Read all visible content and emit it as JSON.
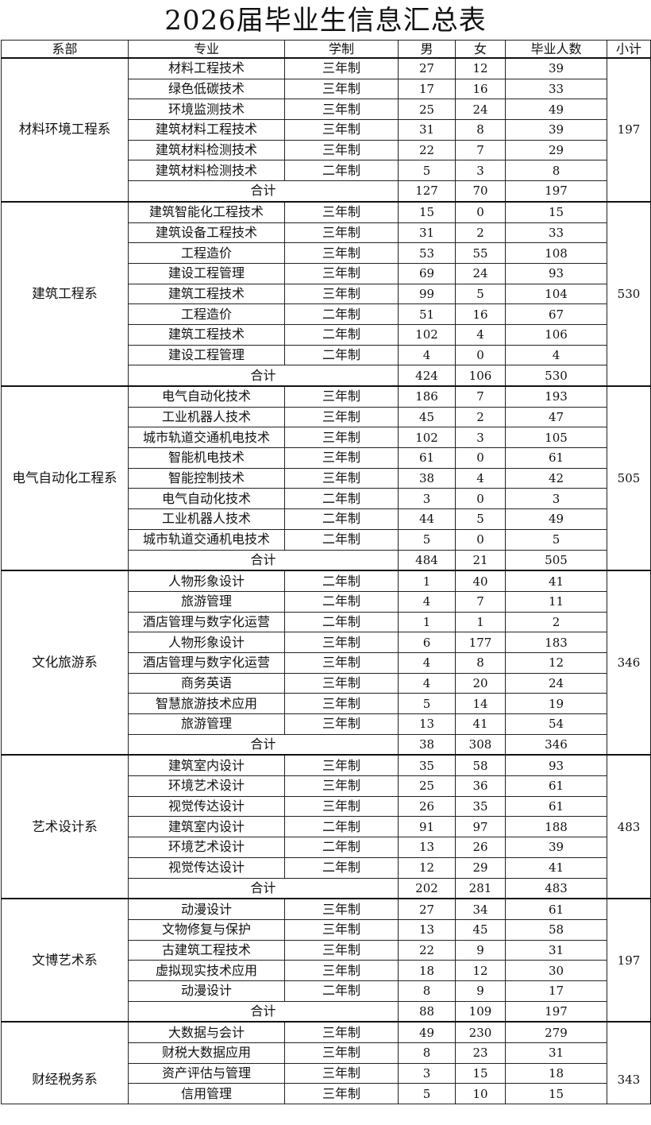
{
  "title": "2026届毕业生信息汇总表",
  "headers": [
    "系部",
    "专业",
    "学制",
    "男",
    "女",
    "毕业人数",
    "小计"
  ],
  "total_label": "合计",
  "departments": [
    {
      "name": "材料环境工程系",
      "subtotal": "197",
      "rows": [
        [
          "材料工程技术",
          "三年制",
          "27",
          "12",
          "39"
        ],
        [
          "绿色低碳技术",
          "三年制",
          "17",
          "16",
          "33"
        ],
        [
          "环境监测技术",
          "三年制",
          "25",
          "24",
          "49"
        ],
        [
          "建筑材料工程技术",
          "三年制",
          "31",
          "8",
          "39"
        ],
        [
          "建筑材料检测技术",
          "三年制",
          "22",
          "7",
          "29"
        ],
        [
          "建筑材料检测技术",
          "二年制",
          "5",
          "3",
          "8"
        ]
      ],
      "total": [
        "127",
        "70",
        "197"
      ]
    },
    {
      "name": "建筑工程系",
      "subtotal": "530",
      "rows": [
        [
          "建筑智能化工程技术",
          "三年制",
          "15",
          "0",
          "15"
        ],
        [
          "建筑设备工程技术",
          "三年制",
          "31",
          "2",
          "33"
        ],
        [
          "工程造价",
          "三年制",
          "53",
          "55",
          "108"
        ],
        [
          "建设工程管理",
          "三年制",
          "69",
          "24",
          "93"
        ],
        [
          "建筑工程技术",
          "三年制",
          "99",
          "5",
          "104"
        ],
        [
          "工程造价",
          "二年制",
          "51",
          "16",
          "67"
        ],
        [
          "建筑工程技术",
          "二年制",
          "102",
          "4",
          "106"
        ],
        [
          "建设工程管理",
          "二年制",
          "4",
          "0",
          "4"
        ]
      ],
      "total": [
        "424",
        "106",
        "530"
      ]
    },
    {
      "name": "电气自动化工程系",
      "subtotal": "505",
      "rows": [
        [
          "电气自动化技术",
          "三年制",
          "186",
          "7",
          "193"
        ],
        [
          "工业机器人技术",
          "三年制",
          "45",
          "2",
          "47"
        ],
        [
          "城市轨道交通机电技术",
          "三年制",
          "102",
          "3",
          "105"
        ],
        [
          "智能机电技术",
          "三年制",
          "61",
          "0",
          "61"
        ],
        [
          "智能控制技术",
          "三年制",
          "38",
          "4",
          "42"
        ],
        [
          "电气自动化技术",
          "二年制",
          "3",
          "0",
          "3"
        ],
        [
          "工业机器人技术",
          "二年制",
          "44",
          "5",
          "49"
        ],
        [
          "城市轨道交通机电技术",
          "二年制",
          "5",
          "0",
          "5"
        ]
      ],
      "total": [
        "484",
        "21",
        "505"
      ]
    },
    {
      "name": "文化旅游系",
      "subtotal": "346",
      "rows": [
        [
          "人物形象设计",
          "二年制",
          "1",
          "40",
          "41"
        ],
        [
          "旅游管理",
          "二年制",
          "4",
          "7",
          "11"
        ],
        [
          "酒店管理与数字化运营",
          "二年制",
          "1",
          "1",
          "2"
        ],
        [
          "人物形象设计",
          "三年制",
          "6",
          "177",
          "183"
        ],
        [
          "酒店管理与数字化运营",
          "三年制",
          "4",
          "8",
          "12"
        ],
        [
          "商务英语",
          "三年制",
          "4",
          "20",
          "24"
        ],
        [
          "智慧旅游技术应用",
          "三年制",
          "5",
          "14",
          "19"
        ],
        [
          "旅游管理",
          "三年制",
          "13",
          "41",
          "54"
        ]
      ],
      "total": [
        "38",
        "308",
        "346"
      ]
    },
    {
      "name": "艺术设计系",
      "subtotal": "483",
      "rows": [
        [
          "建筑室内设计",
          "三年制",
          "35",
          "58",
          "93"
        ],
        [
          "环境艺术设计",
          "三年制",
          "25",
          "36",
          "61"
        ],
        [
          "视觉传达设计",
          "三年制",
          "26",
          "35",
          "61"
        ],
        [
          "建筑室内设计",
          "二年制",
          "91",
          "97",
          "188"
        ],
        [
          "环境艺术设计",
          "二年制",
          "13",
          "26",
          "39"
        ],
        [
          "视觉传达设计",
          "二年制",
          "12",
          "29",
          "41"
        ]
      ],
      "total": [
        "202",
        "281",
        "483"
      ]
    },
    {
      "name": "文博艺术系",
      "subtotal": "197",
      "rows": [
        [
          "动漫设计",
          "三年制",
          "27",
          "34",
          "61"
        ],
        [
          "文物修复与保护",
          "三年制",
          "13",
          "45",
          "58"
        ],
        [
          "古建筑工程技术",
          "三年制",
          "22",
          "9",
          "31"
        ],
        [
          "虚拟现实技术应用",
          "三年制",
          "18",
          "12",
          "30"
        ],
        [
          "动漫设计",
          "二年制",
          "8",
          "9",
          "17"
        ]
      ],
      "total": [
        "88",
        "109",
        "197"
      ]
    },
    {
      "name": "财经税务系",
      "subtotal": "343",
      "rows": [
        [
          "大数据与会计",
          "三年制",
          "49",
          "230",
          "279"
        ],
        [
          "财税大数据应用",
          "三年制",
          "8",
          "23",
          "31"
        ],
        [
          "资产评估与管理",
          "三年制",
          "3",
          "15",
          "18"
        ],
        [
          "信用管理",
          "三年制",
          "5",
          "10",
          "15"
        ]
      ],
      "total": null
    }
  ]
}
